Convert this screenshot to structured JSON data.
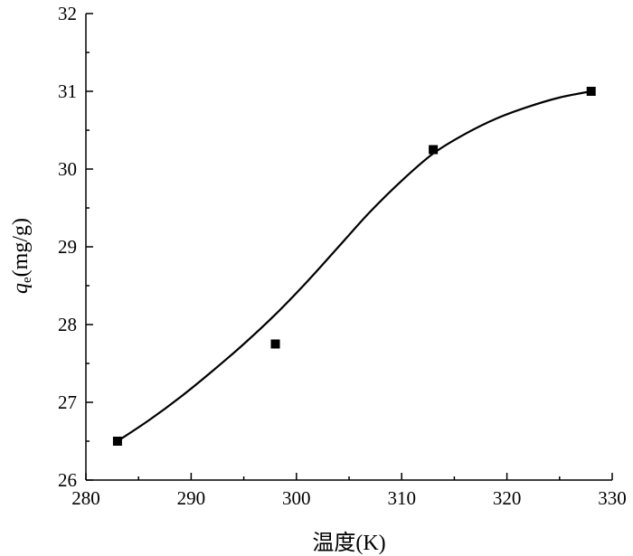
{
  "chart_data": {
    "type": "scatter",
    "xlabel": "温度(K)",
    "ylabel": {
      "symbol": "q",
      "subscript": "e",
      "unit": "(mg/g)"
    },
    "xlim": [
      280,
      330
    ],
    "ylim": [
      26,
      32
    ],
    "xticks": [
      280,
      290,
      300,
      310,
      320,
      330
    ],
    "yticks": [
      26,
      27,
      28,
      29,
      30,
      31,
      32
    ],
    "grid": false,
    "legend": "none",
    "series": [
      {
        "marker": "square",
        "x": [
          283,
          298,
          313,
          328
        ],
        "y": [
          26.5,
          27.75,
          30.25,
          31.0
        ]
      }
    ],
    "fit_curve": {
      "x": [
        283,
        286,
        289,
        292,
        295,
        298,
        301,
        304,
        307,
        310,
        313,
        316,
        319,
        322,
        325,
        328
      ],
      "y": [
        26.5,
        26.77,
        27.07,
        27.4,
        27.75,
        28.13,
        28.55,
        29.0,
        29.45,
        29.85,
        30.2,
        30.45,
        30.65,
        30.8,
        30.92,
        31.0
      ]
    }
  }
}
